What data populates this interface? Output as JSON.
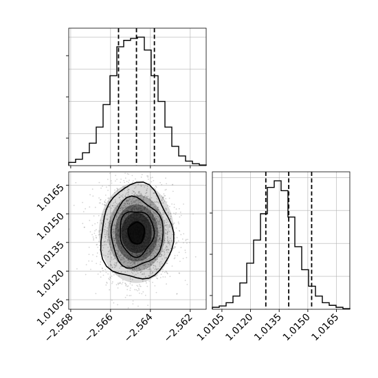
{
  "chart_data": {
    "type": "corner",
    "grid": true,
    "colors": {
      "line": "#000000",
      "points": "#808080",
      "grid": "#b0b0b0",
      "density": "#000000"
    },
    "params": [
      {
        "name": "",
        "median": -2.5647,
        "q_low": -2.5656,
        "q_high": -2.5638
      },
      {
        "name": "",
        "median": 1.014,
        "q_low": 1.0128,
        "q_high": 1.0152
      }
    ],
    "x_ticks_1": [
      "−2.568",
      "−2.566",
      "−2.564",
      "−2.562"
    ],
    "y_ticks_2": [
      "1.0105",
      "1.0120",
      "1.0135",
      "1.0150",
      "1.0165"
    ],
    "x_ticks_2": [
      "1.0105",
      "1.0120",
      "1.0135",
      "1.0150",
      "1.0165"
    ],
    "hist_1": {
      "range": [
        -2.5681,
        -2.5612
      ],
      "counts": [
        0.5,
        1,
        2,
        3.5,
        6,
        9.5,
        14,
        18.5,
        19.5,
        19.8,
        20,
        18,
        14,
        10,
        6,
        3,
        1.5,
        0.7,
        0.3,
        0.1
      ]
    },
    "hist_2": {
      "range": [
        1.01,
        1.0172
      ],
      "counts": [
        0.3,
        0.5,
        1,
        2,
        4,
        7,
        10.5,
        14.5,
        18.5,
        19.5,
        18,
        14,
        9.5,
        6,
        3.5,
        2,
        1,
        0.6,
        0.3,
        0.1
      ]
    },
    "scatter_2d": {
      "x_range": [
        -2.5681,
        -2.5612
      ],
      "y_range": [
        1.01,
        1.0172
      ],
      "contour_levels": [
        "0.5",
        "1",
        "1.5",
        "2"
      ]
    }
  }
}
